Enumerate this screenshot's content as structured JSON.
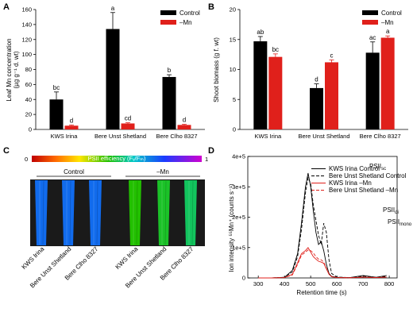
{
  "colors": {
    "control": "#000000",
    "mn": "#e0201b",
    "axis": "#000000"
  },
  "chart_data": [
    {
      "panel": "A",
      "type": "bar",
      "categories": [
        "KWS Irina",
        "Bere Unst Shetland",
        "Bere Clho 8327"
      ],
      "ylabel": "Leaf Mn concentration (µg g⁻¹ d. wt)",
      "ylabel_lines": [
        "Leaf Mn concentration",
        "(µg g⁻¹ d. wt)"
      ],
      "ylim": [
        0,
        160
      ],
      "yticks": [
        "0",
        "20",
        "40",
        "60",
        "80",
        "100",
        "120",
        "140",
        "160"
      ],
      "legend_position": "top-right",
      "series": [
        {
          "name": "Control",
          "color": "#000000",
          "values": [
            40,
            134,
            70
          ],
          "errors": [
            10,
            22,
            3
          ],
          "letters": [
            "bc",
            "a",
            "b"
          ]
        },
        {
          "name": "–Mn",
          "color": "#e0201b",
          "values": [
            5,
            8,
            6
          ],
          "errors": [
            1,
            1,
            1
          ],
          "letters": [
            "d",
            "cd",
            "d"
          ]
        }
      ]
    },
    {
      "panel": "B",
      "type": "bar",
      "categories": [
        "KWS Irina",
        "Bere Unst Shetland",
        "Bere Clho 8327"
      ],
      "ylabel": "Shoot biomass (g f. wt)",
      "ylim": [
        0,
        20
      ],
      "yticks": [
        "0",
        "5",
        "10",
        "15",
        "20"
      ],
      "legend_position": "top-right",
      "series": [
        {
          "name": "Control",
          "color": "#000000",
          "values": [
            14.7,
            6.9,
            12.8
          ],
          "errors": [
            0.8,
            0.7,
            1.8
          ],
          "letters": [
            "ab",
            "d",
            "ac"
          ]
        },
        {
          "name": "–Mn",
          "color": "#e0201b",
          "values": [
            12.1,
            11.2,
            15.3
          ],
          "errors": [
            0.5,
            0.4,
            0.3
          ],
          "letters": [
            "bc",
            "c",
            "a"
          ]
        }
      ]
    },
    {
      "panel": "C",
      "type": "heatmap",
      "scale_title": "PSII efficiency (Fᵥ/Fₘ)",
      "scale_min": "0",
      "scale_max": "1",
      "groups": [
        "Control",
        "–Mn"
      ],
      "leaves": [
        {
          "name": "KWS Irina",
          "value": 0.72
        },
        {
          "name": "Bere Unst Shetland",
          "value": 0.72
        },
        {
          "name": "Bere Clho 8327",
          "value": 0.72
        },
        {
          "name": "KWS Irina",
          "value": 0.45
        },
        {
          "name": "Bere Unst Shetland",
          "value": 0.48
        },
        {
          "name": "Bere Clho 8327",
          "value": 0.52
        }
      ]
    },
    {
      "panel": "D",
      "type": "line",
      "xlabel": "Retention time (s)",
      "ylabel": "Ion intensity ⁵⁵Mn⁺ (counts s⁻¹)",
      "xlim": [
        260,
        830
      ],
      "ylim": [
        0,
        400000
      ],
      "xticks": [
        "300",
        "400",
        "500",
        "600",
        "700",
        "800"
      ],
      "yticks": [
        "0",
        "1e+5",
        "2e+5",
        "3e+5",
        "4e+5"
      ],
      "peak_labels": {
        "sc": {
          "main": "PSII",
          "sub": "sc"
        },
        "di": {
          "main": "PSII",
          "sub": "di"
        },
        "mono": {
          "main": "PSII",
          "sub": "mono"
        }
      },
      "legend_position": "top-right",
      "series": [
        {
          "name": "KWS Irina Control",
          "color": "#000000",
          "dash": "solid",
          "x": [
            300,
            350,
            400,
            430,
            450,
            465,
            480,
            490,
            500,
            510,
            520,
            530,
            540,
            550,
            560,
            570,
            580,
            600,
            650,
            700,
            750,
            790
          ],
          "y": [
            0,
            0,
            2000,
            25000,
            80000,
            180000,
            300000,
            345000,
            300000,
            220000,
            150000,
            110000,
            120000,
            90000,
            45000,
            15000,
            5000,
            2000,
            1000,
            8000,
            2000,
            8000
          ]
        },
        {
          "name": "Bere Unst Shetland Control",
          "color": "#000000",
          "dash": "dashed",
          "x": [
            300,
            350,
            400,
            430,
            450,
            465,
            480,
            490,
            500,
            510,
            520,
            530,
            540,
            550,
            560,
            570,
            580,
            600,
            650,
            700,
            750,
            790
          ],
          "y": [
            0,
            0,
            2000,
            20000,
            70000,
            160000,
            280000,
            330000,
            310000,
            240000,
            190000,
            140000,
            110000,
            180000,
            150000,
            60000,
            15000,
            3000,
            1000,
            6000,
            2000,
            5000
          ]
        },
        {
          "name": "KWS Irina –Mn",
          "color": "#e0201b",
          "dash": "solid",
          "x": [
            300,
            350,
            400,
            430,
            450,
            465,
            480,
            490,
            500,
            510,
            520,
            530,
            540,
            550,
            560,
            570,
            580,
            600,
            650,
            700,
            750,
            790
          ],
          "y": [
            0,
            0,
            1000,
            12000,
            50000,
            80000,
            90000,
            100000,
            85000,
            70000,
            62000,
            55000,
            52000,
            48000,
            30000,
            12000,
            4000,
            1000,
            500,
            3000,
            1000,
            3000
          ]
        },
        {
          "name": "Bere Unst Shetland –Mn",
          "color": "#e0201b",
          "dash": "dashed",
          "x": [
            300,
            350,
            400,
            430,
            450,
            465,
            480,
            490,
            500,
            510,
            520,
            530,
            540,
            550,
            560,
            570,
            580,
            600,
            650,
            700,
            750,
            790
          ],
          "y": [
            0,
            0,
            1000,
            10000,
            45000,
            75000,
            85000,
            92000,
            90000,
            82000,
            70000,
            62000,
            60000,
            52000,
            32000,
            13000,
            4000,
            1000,
            500,
            2000,
            1000,
            3000
          ]
        }
      ]
    }
  ]
}
